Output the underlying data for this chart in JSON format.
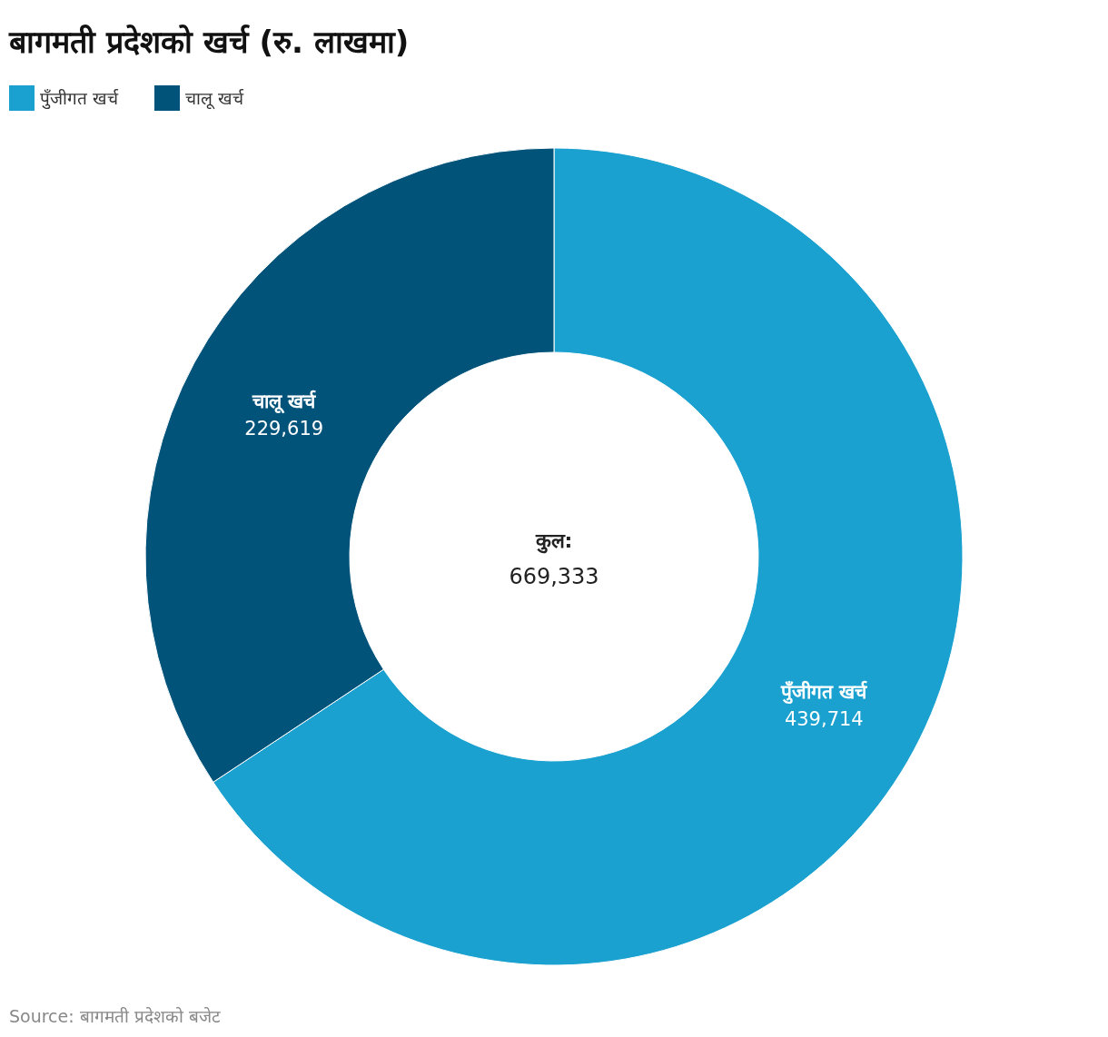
{
  "chart_data": {
    "type": "donut",
    "title": "बागमती प्रदेशको खर्च (रु. लाखमा)",
    "categories": [
      "पुँजीगत खर्च",
      "चालू खर्च"
    ],
    "values": [
      439714,
      229619
    ],
    "colors": [
      "#1aa1cf",
      "#01537a"
    ],
    "legend": "top left",
    "value_labels": [
      "439,714",
      "229,619"
    ],
    "annotations": [
      "कुल:",
      "669,333",
      "Source: बागमती प्रदेशको बजेट"
    ]
  }
}
